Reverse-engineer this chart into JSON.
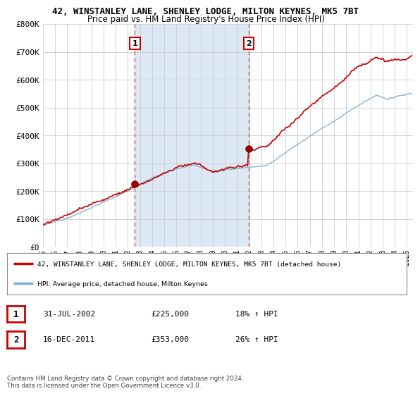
{
  "title": "42, WINSTANLEY LANE, SHENLEY LODGE, MILTON KEYNES, MK5 7BT",
  "subtitle": "Price paid vs. HM Land Registry's House Price Index (HPI)",
  "ylabel_ticks": [
    "£0",
    "£100K",
    "£200K",
    "£300K",
    "£400K",
    "£500K",
    "£600K",
    "£700K",
    "£800K"
  ],
  "ylim": [
    0,
    800000
  ],
  "xlim_start": 1995.0,
  "xlim_end": 2025.5,
  "sale1_x": 2002.58,
  "sale1_y": 225000,
  "sale1_label": "1",
  "sale2_x": 2011.96,
  "sale2_y": 353000,
  "sale2_label": "2",
  "red_line_color": "#cc0000",
  "blue_line_color": "#7bafd4",
  "dashed_line_color": "#dd4444",
  "plot_bg_color": "#ffffff",
  "shade_color": "#dce9f5",
  "legend_label_red": "42, WINSTANLEY LANE, SHENLEY LODGE, MILTON KEYNES, MK5 7BT (detached house)",
  "legend_label_blue": "HPI: Average price, detached house, Milton Keynes",
  "table_row1": [
    "1",
    "31-JUL-2002",
    "£225,000",
    "18% ↑ HPI"
  ],
  "table_row2": [
    "2",
    "16-DEC-2011",
    "£353,000",
    "26% ↑ HPI"
  ],
  "footnote": "Contains HM Land Registry data © Crown copyright and database right 2024.\nThis data is licensed under the Open Government Licence v3.0.",
  "x_tick_years": [
    1995,
    1996,
    1997,
    1998,
    1999,
    2000,
    2001,
    2002,
    2003,
    2004,
    2005,
    2006,
    2007,
    2008,
    2009,
    2010,
    2011,
    2012,
    2013,
    2014,
    2015,
    2016,
    2017,
    2018,
    2019,
    2020,
    2021,
    2022,
    2023,
    2024,
    2025
  ]
}
